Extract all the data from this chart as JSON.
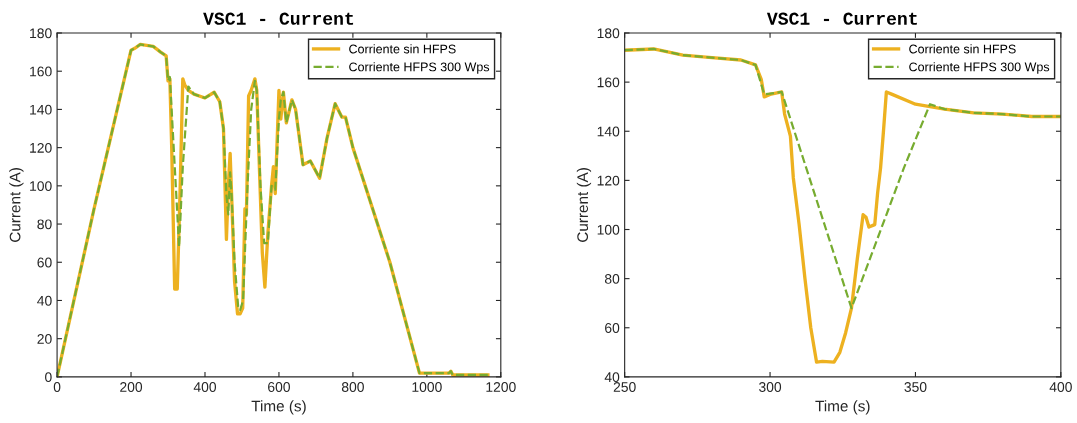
{
  "chart_data": [
    {
      "type": "line",
      "title": "VSC1 - Current",
      "xlabel": "Time (s)",
      "ylabel": "Current (A)",
      "xlim": [
        0,
        1200
      ],
      "ylim": [
        0,
        180
      ],
      "xticks": [
        0,
        200,
        400,
        600,
        800,
        1000,
        1200
      ],
      "yticks": [
        0,
        20,
        40,
        60,
        80,
        100,
        120,
        140,
        160,
        180
      ],
      "grid": false,
      "legend": "top right",
      "series": [
        {
          "name": "Corriente sin HFPS",
          "color": "#edb120",
          "line_style": "solid",
          "x": [
            0,
            100,
            200,
            210,
            225,
            260,
            280,
            295,
            300,
            305,
            310,
            318,
            325,
            333,
            340,
            345,
            355,
            370,
            400,
            425,
            440,
            450,
            458,
            463,
            468,
            472,
            480,
            488,
            495,
            502,
            508,
            512,
            518,
            525,
            535,
            540,
            555,
            562,
            570,
            580,
            585,
            590,
            600,
            605,
            612,
            620,
            635,
            645,
            665,
            685,
            710,
            730,
            752,
            770,
            780,
            800,
            900,
            980,
            1060,
            1065,
            1070,
            1165
          ],
          "values": [
            0,
            88,
            171,
            172,
            174,
            173,
            170,
            168,
            155,
            156,
            120,
            46,
            46,
            100,
            156,
            153,
            150,
            148,
            146,
            149,
            144,
            130,
            72,
            100,
            117,
            95,
            50,
            33,
            33,
            36,
            88,
            85,
            147,
            150,
            156,
            150,
            65,
            47,
            75,
            100,
            110,
            96,
            150,
            135,
            149,
            133,
            145,
            140,
            111,
            113,
            104,
            125,
            143,
            136,
            136,
            120,
            60,
            2,
            2,
            3,
            1,
            1
          ]
        },
        {
          "name": "Corriente HFPS 300 Wps",
          "color": "#77ac30",
          "line_style": "dashed",
          "x": [
            0,
            100,
            200,
            210,
            225,
            260,
            280,
            295,
            300,
            305,
            330,
            340,
            355,
            370,
            400,
            425,
            440,
            450,
            458,
            463,
            468,
            472,
            480,
            490,
            495,
            503,
            515,
            525,
            535,
            540,
            550,
            560,
            570,
            580,
            590,
            600,
            605,
            612,
            620,
            635,
            645,
            665,
            685,
            710,
            730,
            752,
            770,
            780,
            800,
            900,
            980,
            1060,
            1065,
            1070,
            1165
          ],
          "values": [
            0,
            88,
            171,
            172,
            174,
            173,
            170,
            168,
            155,
            157,
            68,
            110,
            152,
            148,
            146,
            149,
            144,
            130,
            95,
            85,
            107,
            95,
            60,
            36,
            35,
            40,
            100,
            140,
            155,
            150,
            100,
            70,
            70,
            100,
            98,
            135,
            145,
            149,
            133,
            145,
            140,
            111,
            113,
            104,
            125,
            143,
            136,
            136,
            120,
            60,
            2,
            2,
            3,
            1,
            1
          ]
        }
      ]
    },
    {
      "type": "line",
      "title": "VSC1 - Current",
      "xlabel": "Time (s)",
      "ylabel": "Current (A)",
      "xlim": [
        250,
        400
      ],
      "ylim": [
        40,
        180
      ],
      "xticks": [
        250,
        300,
        350,
        400
      ],
      "yticks": [
        40,
        60,
        80,
        100,
        120,
        140,
        160,
        180
      ],
      "grid": false,
      "legend": "top right",
      "series": [
        {
          "name": "Corriente sin HFPS",
          "color": "#edb120",
          "line_style": "solid",
          "x": [
            250,
            260,
            270,
            280,
            290,
            295,
            297,
            298,
            300,
            304,
            305,
            307,
            308,
            310,
            312,
            314,
            316,
            318,
            322,
            324,
            326,
            328,
            330,
            332,
            333,
            334,
            336,
            337,
            338,
            339,
            340,
            342,
            348,
            350,
            360,
            370,
            380,
            390,
            400
          ],
          "values": [
            173,
            173.5,
            171,
            170,
            169,
            167,
            161,
            154,
            155,
            156,
            147,
            138,
            121,
            102,
            80,
            60,
            46,
            46.3,
            46,
            50,
            58,
            68,
            88,
            106,
            105,
            101,
            102,
            115,
            125,
            140,
            156,
            155,
            152,
            151,
            149,
            147.5,
            147,
            146,
            146
          ]
        },
        {
          "name": "Corriente HFPS 300 Wps",
          "color": "#77ac30",
          "line_style": "dashed",
          "x": [
            250,
            260,
            270,
            280,
            290,
            295,
            298,
            304,
            328,
            340,
            346,
            355,
            360,
            370,
            380,
            390,
            400
          ],
          "values": [
            173,
            173.5,
            171,
            170,
            169,
            167,
            155,
            156,
            68,
            106,
            125,
            151,
            149,
            147.5,
            147,
            146,
            146
          ]
        }
      ]
    }
  ]
}
